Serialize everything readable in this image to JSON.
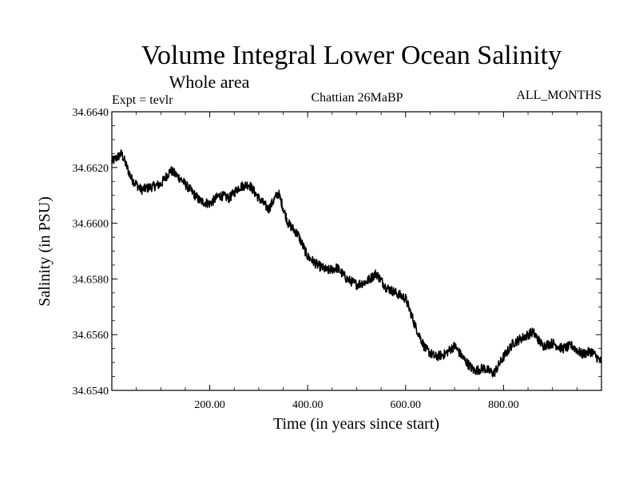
{
  "chart_data": {
    "type": "line",
    "title": "Volume Integral Lower Ocean Salinity",
    "subtitle": "Whole area",
    "expt_label": "Expt = tevlr",
    "period_label": "Chattian  26MaBP",
    "months_label": "ALL_MONTHS",
    "xlabel": "Time (in years since start)",
    "ylabel": "Salinity (in PSU)",
    "xlim": [
      0,
      1000
    ],
    "ylim": [
      34.654,
      34.664
    ],
    "x_ticks": [
      200,
      400,
      600,
      800
    ],
    "x_tick_labels": [
      "200.00",
      "400.00",
      "600.00",
      "800.00"
    ],
    "y_ticks": [
      34.654,
      34.656,
      34.658,
      34.66,
      34.662,
      34.664
    ],
    "y_tick_labels": [
      "34.6540",
      "34.6560",
      "34.6580",
      "34.6600",
      "34.6620",
      "34.6640"
    ],
    "series": [
      {
        "name": "Salinity",
        "color": "#000000",
        "x": [
          0,
          20,
          40,
          60,
          80,
          100,
          120,
          140,
          160,
          180,
          200,
          220,
          240,
          260,
          280,
          300,
          320,
          340,
          360,
          380,
          400,
          420,
          440,
          460,
          480,
          500,
          520,
          540,
          560,
          580,
          600,
          620,
          640,
          660,
          680,
          700,
          720,
          740,
          760,
          780,
          800,
          820,
          840,
          860,
          880,
          900,
          920,
          940,
          960,
          980,
          1000
        ],
        "values": [
          34.6622,
          34.6625,
          34.6616,
          34.6612,
          34.6613,
          34.6614,
          34.6619,
          34.6616,
          34.6612,
          34.6608,
          34.6607,
          34.661,
          34.6609,
          34.6613,
          34.6614,
          34.6609,
          34.6605,
          34.6611,
          34.66,
          34.6596,
          34.6588,
          34.6585,
          34.6583,
          34.6584,
          34.658,
          34.6578,
          34.6579,
          34.6582,
          34.6577,
          34.6575,
          34.6573,
          34.6563,
          34.6555,
          34.6552,
          34.6553,
          34.6556,
          34.6551,
          34.6547,
          34.6548,
          34.6546,
          34.6552,
          34.6557,
          34.6559,
          34.6561,
          34.6556,
          34.6557,
          34.6555,
          34.6556,
          34.6553,
          34.6554,
          34.655
        ]
      }
    ]
  }
}
